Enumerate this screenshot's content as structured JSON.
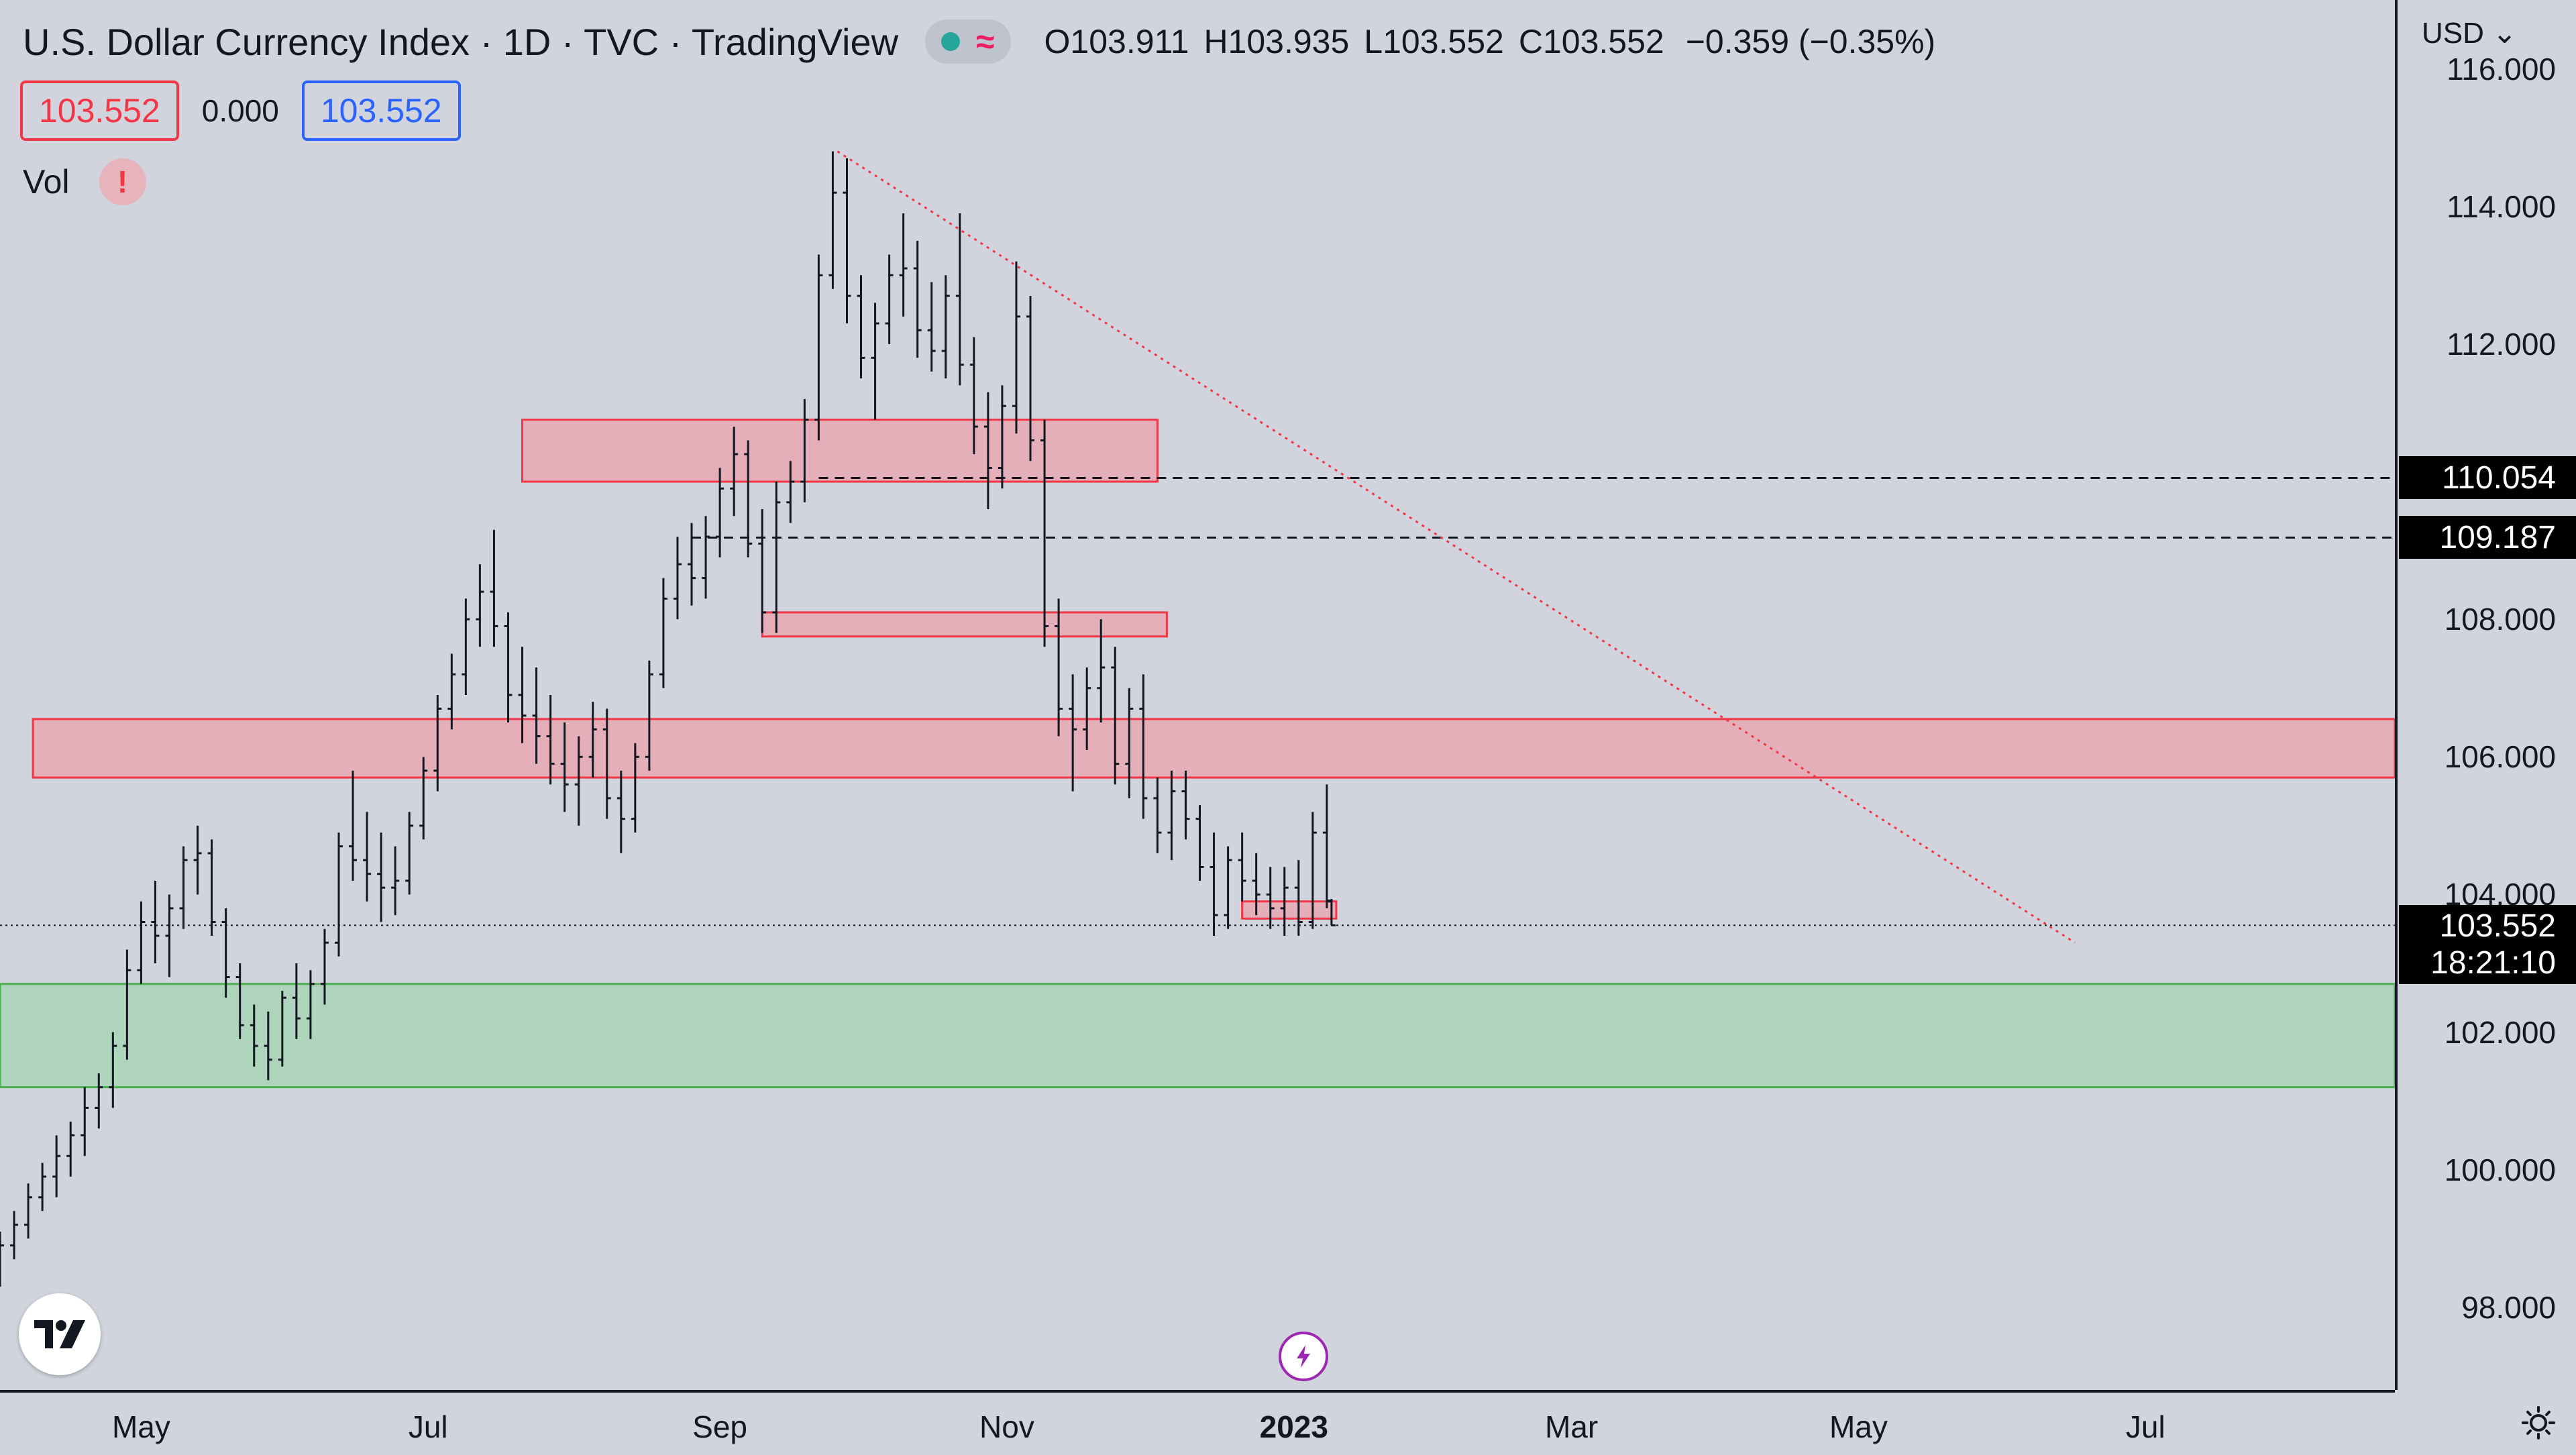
{
  "header": {
    "title": "U.S. Dollar Currency Index · 1D · TVC · TradingView",
    "ohlc": [
      {
        "k": "O",
        "v": "103.911"
      },
      {
        "k": "H",
        "v": "103.935"
      },
      {
        "k": "L",
        "v": "103.552"
      },
      {
        "k": "C",
        "v": "103.552"
      }
    ],
    "change": "−0.359 (−0.35%)"
  },
  "trade": {
    "sell": "103.552",
    "spread": "0.000",
    "buy": "103.552"
  },
  "indicators": {
    "vol_label": "Vol",
    "alert_symbol": "!"
  },
  "axis": {
    "currency": "USD",
    "y_ticks": [
      "98.000",
      "100.000",
      "102.000",
      "104.000",
      "106.000",
      "108.000",
      "110.000",
      "112.000",
      "114.000",
      "116.000"
    ],
    "level_labels": [
      "110.054",
      "109.187"
    ],
    "last_price": "103.552",
    "countdown": "18:21:10",
    "x_ticks": [
      {
        "label": "May",
        "date": "2022-05-01",
        "bold": false
      },
      {
        "label": "Jul",
        "date": "2022-07-01",
        "bold": false
      },
      {
        "label": "Sep",
        "date": "2022-09-01",
        "bold": false
      },
      {
        "label": "Nov",
        "date": "2022-11-01",
        "bold": false
      },
      {
        "label": "2023",
        "date": "2023-01-01",
        "bold": true
      },
      {
        "label": "Mar",
        "date": "2023-03-01",
        "bold": false
      },
      {
        "label": "May",
        "date": "2023-05-01",
        "bold": false
      },
      {
        "label": "Jul",
        "date": "2023-07-01",
        "bold": false
      }
    ]
  },
  "colors": {
    "zone_red_fill": "#e8a8b2",
    "zone_red_border": "#f23645",
    "zone_green_fill": "#a8d5b5",
    "zone_green_border": "#4caf50",
    "trendline": "#f23645",
    "bars": "#131722"
  },
  "chart_data": {
    "type": "ohlc",
    "title": "U.S. Dollar Currency Index · 1D · TVC",
    "ylim": [
      96.8,
      117
    ],
    "x_range": [
      "2022-04-01",
      "2023-08-23"
    ],
    "ohlc": [
      [
        "2022-04-01",
        98.5,
        99.1,
        98.3,
        98.9
      ],
      [
        "2022-04-04",
        98.9,
        99.4,
        98.7,
        99.2
      ],
      [
        "2022-04-07",
        99.2,
        99.8,
        99.0,
        99.6
      ],
      [
        "2022-04-10",
        99.6,
        100.1,
        99.4,
        99.9
      ],
      [
        "2022-04-13",
        99.9,
        100.5,
        99.6,
        100.2
      ],
      [
        "2022-04-16",
        100.2,
        100.7,
        99.9,
        100.5
      ],
      [
        "2022-04-19",
        100.5,
        101.2,
        100.2,
        100.9
      ],
      [
        "2022-04-22",
        100.9,
        101.4,
        100.6,
        101.2
      ],
      [
        "2022-04-25",
        101.2,
        102.0,
        100.9,
        101.8
      ],
      [
        "2022-04-28",
        101.8,
        103.2,
        101.6,
        102.9
      ],
      [
        "2022-05-01",
        102.9,
        103.9,
        102.7,
        103.6
      ],
      [
        "2022-05-04",
        103.6,
        104.2,
        103.0,
        103.4
      ],
      [
        "2022-05-07",
        103.4,
        104.0,
        102.8,
        103.8
      ],
      [
        "2022-05-10",
        103.8,
        104.7,
        103.5,
        104.5
      ],
      [
        "2022-05-13",
        104.5,
        105.0,
        104.0,
        104.6
      ],
      [
        "2022-05-16",
        104.6,
        104.8,
        103.4,
        103.6
      ],
      [
        "2022-05-19",
        103.6,
        103.8,
        102.5,
        102.8
      ],
      [
        "2022-05-22",
        102.8,
        103.0,
        101.9,
        102.1
      ],
      [
        "2022-05-25",
        102.1,
        102.4,
        101.5,
        101.8
      ],
      [
        "2022-05-28",
        101.8,
        102.3,
        101.3,
        101.6
      ],
      [
        "2022-05-31",
        101.6,
        102.6,
        101.5,
        102.5
      ],
      [
        "2022-06-03",
        102.5,
        103.0,
        101.9,
        102.2
      ],
      [
        "2022-06-06",
        102.2,
        102.9,
        101.9,
        102.7
      ],
      [
        "2022-06-09",
        102.7,
        103.5,
        102.4,
        103.3
      ],
      [
        "2022-06-12",
        103.3,
        104.9,
        103.1,
        104.7
      ],
      [
        "2022-06-15",
        104.7,
        105.8,
        104.2,
        104.5
      ],
      [
        "2022-06-18",
        104.5,
        105.2,
        103.9,
        104.3
      ],
      [
        "2022-06-21",
        104.3,
        104.9,
        103.6,
        104.1
      ],
      [
        "2022-06-24",
        104.1,
        104.7,
        103.7,
        104.2
      ],
      [
        "2022-06-27",
        104.2,
        105.2,
        104.0,
        105.0
      ],
      [
        "2022-06-30",
        105.0,
        106.0,
        104.8,
        105.8
      ],
      [
        "2022-07-03",
        105.8,
        106.9,
        105.5,
        106.7
      ],
      [
        "2022-07-06",
        106.7,
        107.5,
        106.4,
        107.2
      ],
      [
        "2022-07-09",
        107.2,
        108.3,
        106.9,
        108.0
      ],
      [
        "2022-07-12",
        108.0,
        108.8,
        107.6,
        108.4
      ],
      [
        "2022-07-15",
        108.4,
        109.3,
        107.6,
        107.9
      ],
      [
        "2022-07-18",
        107.9,
        108.1,
        106.5,
        106.9
      ],
      [
        "2022-07-21",
        106.9,
        107.6,
        106.2,
        106.6
      ],
      [
        "2022-07-24",
        106.6,
        107.3,
        105.9,
        106.3
      ],
      [
        "2022-07-27",
        106.3,
        106.9,
        105.6,
        105.9
      ],
      [
        "2022-07-30",
        105.9,
        106.5,
        105.2,
        105.6
      ],
      [
        "2022-08-02",
        105.6,
        106.3,
        105.0,
        106.0
      ],
      [
        "2022-08-05",
        106.0,
        106.8,
        105.7,
        106.4
      ],
      [
        "2022-08-08",
        106.4,
        106.7,
        105.1,
        105.4
      ],
      [
        "2022-08-11",
        105.4,
        105.8,
        104.6,
        105.1
      ],
      [
        "2022-08-14",
        105.1,
        106.2,
        104.9,
        106.0
      ],
      [
        "2022-08-17",
        106.0,
        107.4,
        105.8,
        107.2
      ],
      [
        "2022-08-20",
        107.2,
        108.6,
        107.0,
        108.3
      ],
      [
        "2022-08-23",
        108.3,
        109.2,
        108.0,
        108.8
      ],
      [
        "2022-08-26",
        108.8,
        109.4,
        108.2,
        108.6
      ],
      [
        "2022-08-29",
        108.6,
        109.5,
        108.3,
        109.2
      ],
      [
        "2022-09-01",
        109.2,
        110.2,
        108.9,
        109.9
      ],
      [
        "2022-09-04",
        109.9,
        110.8,
        109.5,
        110.4
      ],
      [
        "2022-09-07",
        110.4,
        110.6,
        108.9,
        109.1
      ],
      [
        "2022-09-10",
        109.1,
        109.6,
        107.8,
        108.1
      ],
      [
        "2022-09-13",
        108.1,
        110.0,
        107.8,
        109.7
      ],
      [
        "2022-09-16",
        109.7,
        110.3,
        109.4,
        110.0
      ],
      [
        "2022-09-19",
        110.0,
        111.2,
        109.7,
        110.9
      ],
      [
        "2022-09-22",
        110.9,
        113.3,
        110.6,
        113.0
      ],
      [
        "2022-09-25",
        113.0,
        114.8,
        112.8,
        114.2
      ],
      [
        "2022-09-28",
        114.2,
        114.7,
        112.3,
        112.7
      ],
      [
        "2022-10-01",
        112.7,
        113.0,
        111.5,
        111.8
      ],
      [
        "2022-10-04",
        111.8,
        112.6,
        110.9,
        112.3
      ],
      [
        "2022-10-07",
        112.3,
        113.3,
        112.0,
        113.0
      ],
      [
        "2022-10-10",
        113.0,
        113.9,
        112.4,
        113.1
      ],
      [
        "2022-10-13",
        113.1,
        113.5,
        111.8,
        112.2
      ],
      [
        "2022-10-16",
        112.2,
        112.9,
        111.6,
        111.9
      ],
      [
        "2022-10-19",
        111.9,
        113.0,
        111.5,
        112.7
      ],
      [
        "2022-10-22",
        112.7,
        113.9,
        111.4,
        111.7
      ],
      [
        "2022-10-25",
        111.7,
        112.1,
        110.4,
        110.8
      ],
      [
        "2022-10-28",
        110.8,
        111.3,
        109.6,
        110.2
      ],
      [
        "2022-10-31",
        110.2,
        111.4,
        109.9,
        111.1
      ],
      [
        "2022-11-03",
        111.1,
        113.2,
        110.7,
        112.4
      ],
      [
        "2022-11-06",
        112.4,
        112.7,
        110.3,
        110.6
      ],
      [
        "2022-11-09",
        110.6,
        110.9,
        107.6,
        107.9
      ],
      [
        "2022-11-12",
        107.9,
        108.3,
        106.3,
        106.7
      ],
      [
        "2022-11-15",
        106.7,
        107.2,
        105.5,
        106.4
      ],
      [
        "2022-11-18",
        106.4,
        107.3,
        106.1,
        107.0
      ],
      [
        "2022-11-21",
        107.0,
        108.0,
        106.5,
        107.3
      ],
      [
        "2022-11-24",
        107.3,
        107.6,
        105.6,
        105.9
      ],
      [
        "2022-11-27",
        105.9,
        107.0,
        105.4,
        106.7
      ],
      [
        "2022-11-30",
        106.7,
        107.2,
        105.1,
        105.4
      ],
      [
        "2022-12-03",
        105.4,
        105.7,
        104.6,
        104.9
      ],
      [
        "2022-12-06",
        104.9,
        105.8,
        104.5,
        105.5
      ],
      [
        "2022-12-09",
        105.5,
        105.8,
        104.8,
        105.1
      ],
      [
        "2022-12-12",
        105.1,
        105.3,
        104.2,
        104.4
      ],
      [
        "2022-12-15",
        104.4,
        104.9,
        103.4,
        103.7
      ],
      [
        "2022-12-18",
        103.7,
        104.7,
        103.5,
        104.5
      ],
      [
        "2022-12-21",
        104.5,
        104.9,
        103.9,
        104.2
      ],
      [
        "2022-12-24",
        104.2,
        104.6,
        103.7,
        104.0
      ],
      [
        "2022-12-27",
        104.0,
        104.4,
        103.5,
        103.8
      ],
      [
        "2022-12-30",
        103.8,
        104.4,
        103.4,
        104.1
      ],
      [
        "2023-01-02",
        104.1,
        104.5,
        103.4,
        103.6
      ],
      [
        "2023-01-05",
        103.6,
        105.2,
        103.5,
        104.9
      ],
      [
        "2023-01-08",
        104.9,
        105.6,
        103.8,
        103.9
      ],
      [
        "2023-01-09",
        103.911,
        103.935,
        103.552,
        103.552
      ]
    ],
    "zones": [
      {
        "name": "resistance-zone-top",
        "from": "2022-07-21",
        "to": "2022-12-03",
        "y_low": 110.0,
        "y_high": 110.9
      },
      {
        "name": "resistance-zone-mid",
        "from": "2022-09-10",
        "to": "2022-12-05",
        "y_low": 107.75,
        "y_high": 108.1
      },
      {
        "name": "resistance-zone-main",
        "from": "2022-04-08",
        "to": "2023-08-23",
        "y_low": 105.7,
        "y_high": 106.55
      },
      {
        "name": "small-zone",
        "from": "2022-12-21",
        "to": "2023-01-10",
        "y_low": 103.65,
        "y_high": 103.9
      },
      {
        "name": "support-zone",
        "from": "2022-04-01",
        "to": "2023-08-23",
        "y_low": 101.2,
        "y_high": 102.7
      }
    ],
    "levels": [
      {
        "name": "level-110054",
        "value": 110.054,
        "from": "2022-09-22"
      },
      {
        "name": "level-109187",
        "value": 109.187,
        "from": "2022-08-26"
      }
    ],
    "trendline": {
      "from": [
        "2022-09-26",
        114.8
      ],
      "to": [
        "2023-06-16",
        103.3
      ]
    }
  }
}
